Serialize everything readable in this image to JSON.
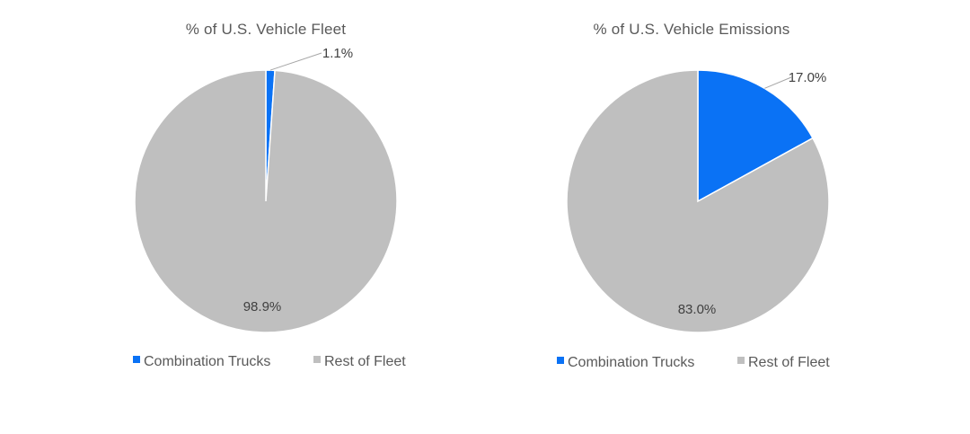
{
  "chart_data": [
    {
      "type": "pie",
      "title": "% of U.S. Vehicle Fleet",
      "categories": [
        "Combination Trucks",
        "Rest of Fleet"
      ],
      "values": [
        1.1,
        98.9
      ],
      "labels": [
        "1.1%",
        "98.9%"
      ],
      "colors": [
        "#0a72f5",
        "#bfbfbf"
      ],
      "legend": "bottom",
      "legend_items": [
        "Combination Trucks",
        "Rest of Fleet"
      ]
    },
    {
      "type": "pie",
      "title": "% of U.S. Vehicle Emissions",
      "categories": [
        "Combination Trucks",
        "Rest of Fleet"
      ],
      "values": [
        17.0,
        83.0
      ],
      "labels": [
        "17.0%",
        "83.0%"
      ],
      "colors": [
        "#0a72f5",
        "#bfbfbf"
      ],
      "legend": "bottom",
      "legend_items": [
        "Combination Trucks",
        "Rest of Fleet"
      ]
    }
  ]
}
